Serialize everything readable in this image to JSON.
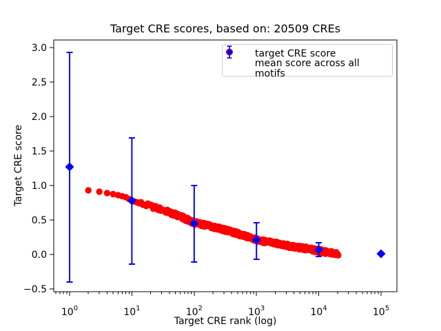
{
  "chart_data": {
    "type": "scatter",
    "title": "Target CRE scores, based on: 20509 CREs",
    "xlabel": "Target CRE rank (log)",
    "ylabel": "Target CRE score",
    "x_scale": "log",
    "xlim": [
      0.562,
      177828
    ],
    "ylim": [
      -0.55,
      3.1
    ],
    "x_tick_exponents": [
      0,
      1,
      2,
      3,
      4,
      5
    ],
    "y_ticks": [
      -0.5,
      0.0,
      0.5,
      1.0,
      1.5,
      2.0,
      2.5,
      3.0
    ],
    "grid": false,
    "legend_position": "upper right",
    "colors": {
      "target_series": "#ff0000",
      "mean_series": "#0000ff",
      "axis": "#000000",
      "legend_border": "#cccccc"
    },
    "series": [
      {
        "name": "target CRE score",
        "marker": "circle",
        "color": "#ff0000",
        "rank_range": [
          2,
          20509
        ],
        "curve_anchors": [
          [
            2,
            0.93
          ],
          [
            3,
            0.91
          ],
          [
            4,
            0.89
          ],
          [
            5,
            0.875
          ],
          [
            6,
            0.86
          ],
          [
            8,
            0.83
          ],
          [
            10,
            0.78
          ],
          [
            15,
            0.73
          ],
          [
            20,
            0.7
          ],
          [
            35,
            0.63
          ],
          [
            60,
            0.55
          ],
          [
            100,
            0.46
          ],
          [
            180,
            0.41
          ],
          [
            300,
            0.36
          ],
          [
            600,
            0.28
          ],
          [
            1000,
            0.21
          ],
          [
            2000,
            0.16
          ],
          [
            4000,
            0.11
          ],
          [
            7000,
            0.08
          ],
          [
            10000,
            0.05
          ],
          [
            15000,
            0.03
          ],
          [
            20509,
            0.01
          ]
        ]
      },
      {
        "name": "mean score across all motifs",
        "marker": "diamond",
        "color": "#0000ff",
        "points": [
          {
            "x": 1,
            "y": 1.27,
            "err_low": -0.4,
            "err_high": 2.93
          },
          {
            "x": 10,
            "y": 0.78,
            "err_low": -0.14,
            "err_high": 1.69
          },
          {
            "x": 100,
            "y": 0.45,
            "err_low": -0.11,
            "err_high": 1.0
          },
          {
            "x": 1000,
            "y": 0.21,
            "err_low": -0.07,
            "err_high": 0.46
          },
          {
            "x": 10000,
            "y": 0.07,
            "err_low": -0.03,
            "err_high": 0.17
          },
          {
            "x": 100000,
            "y": 0.01,
            "err_low": 0.01,
            "err_high": 0.01
          }
        ]
      }
    ],
    "legend": {
      "entries": [
        {
          "label": "target CRE score"
        },
        {
          "label": "mean score across all motifs"
        }
      ]
    }
  }
}
